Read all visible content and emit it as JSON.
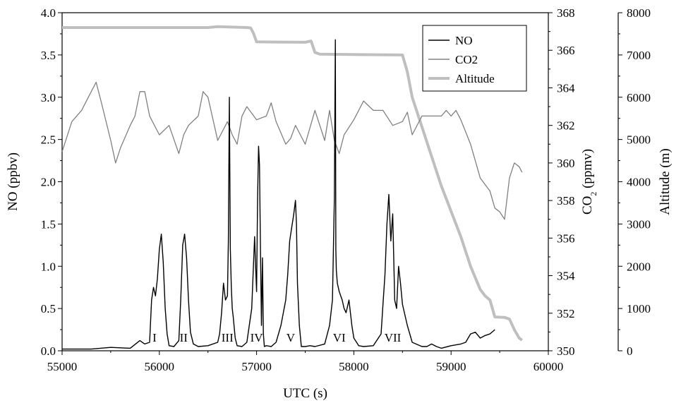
{
  "chart_data": {
    "type": "line",
    "xlabel": "UTC (s)",
    "x_axis": {
      "range": [
        55000,
        60000
      ],
      "ticks": [
        "55000",
        "56000",
        "57000",
        "58000",
        "59000",
        "60000"
      ]
    },
    "y_axes": [
      {
        "key": "no",
        "label_parts": [
          "NO (ppbv)"
        ],
        "range": [
          0,
          4
        ],
        "ticks": [
          "0.0",
          "0.5",
          "1.0",
          "1.5",
          "2.0",
          "2.5",
          "3.0",
          "3.5",
          "4.0"
        ]
      },
      {
        "key": "co2",
        "label_parts": [
          "CO",
          "2",
          " (ppmv)"
        ],
        "range": [
          350,
          368
        ],
        "ticks": [
          "350",
          "352",
          "354",
          "356",
          "358",
          "360",
          "362",
          "364",
          "366",
          "368"
        ]
      },
      {
        "key": "alt",
        "label_parts": [
          "Altitude (m)"
        ],
        "range": [
          0,
          8000
        ],
        "ticks": [
          "0",
          "1000",
          "2000",
          "3000",
          "4000",
          "5000",
          "6000",
          "7000",
          "8000"
        ]
      }
    ],
    "legend": {
      "position": "top-right",
      "entries": [
        {
          "key": "no",
          "label_parts": [
            "NO"
          ]
        },
        {
          "key": "co2",
          "label_parts": [
            "CO",
            "2"
          ]
        },
        {
          "key": "alt",
          "label_parts": [
            "Altitude"
          ]
        }
      ]
    },
    "series": [
      {
        "key": "no",
        "name": "NO",
        "axis": "no",
        "color": "#000000",
        "x": [
          55000,
          55300,
          55500,
          55700,
          55800,
          55850,
          55900,
          55920,
          55940,
          55960,
          55980,
          56000,
          56020,
          56040,
          56060,
          56080,
          56100,
          56150,
          56200,
          56220,
          56240,
          56260,
          56280,
          56300,
          56320,
          56350,
          56400,
          56500,
          56600,
          56620,
          56640,
          56660,
          56680,
          56700,
          56710,
          56720,
          56730,
          56740,
          56750,
          56760,
          56780,
          56800,
          56850,
          56900,
          56950,
          56980,
          56990,
          57000,
          57010,
          57020,
          57030,
          57040,
          57050,
          57060,
          57070,
          57080,
          57100,
          57150,
          57200,
          57250,
          57300,
          57320,
          57340,
          57360,
          57380,
          57400,
          57410,
          57420,
          57440,
          57460,
          57500,
          57550,
          57600,
          57700,
          57750,
          57780,
          57800,
          57810,
          57815,
          57820,
          57830,
          57850,
          57880,
          57900,
          57920,
          57950,
          57980,
          58000,
          58050,
          58100,
          58200,
          58280,
          58300,
          58320,
          58340,
          58360,
          58380,
          58400,
          58420,
          58440,
          58460,
          58480,
          58500,
          58550,
          58600,
          58700,
          58750,
          58800,
          58850,
          58900,
          59000,
          59100,
          59150,
          59200,
          59250,
          59300,
          59350,
          59400,
          59450
        ],
        "y": [
          0.02,
          0.02,
          0.04,
          0.03,
          0.12,
          0.08,
          0.1,
          0.6,
          0.75,
          0.65,
          0.85,
          1.2,
          1.38,
          1.05,
          0.5,
          0.2,
          0.06,
          0.05,
          0.12,
          0.6,
          1.25,
          1.38,
          1.1,
          0.6,
          0.22,
          0.08,
          0.05,
          0.06,
          0.1,
          0.2,
          0.45,
          0.8,
          0.6,
          0.65,
          1.3,
          3.0,
          1.2,
          0.75,
          0.5,
          0.4,
          0.15,
          0.06,
          0.05,
          0.1,
          0.5,
          1.35,
          1.0,
          0.7,
          1.8,
          2.42,
          2.2,
          1.2,
          0.3,
          1.1,
          0.2,
          0.05,
          0.06,
          0.05,
          0.1,
          0.3,
          0.6,
          0.9,
          1.3,
          1.45,
          1.6,
          1.78,
          1.5,
          0.8,
          0.3,
          0.05,
          0.05,
          0.06,
          0.05,
          0.08,
          0.3,
          0.6,
          1.8,
          3.68,
          1.2,
          0.95,
          0.8,
          0.7,
          0.6,
          0.5,
          0.45,
          0.6,
          0.3,
          0.15,
          0.06,
          0.05,
          0.06,
          0.2,
          0.55,
          0.9,
          1.5,
          1.85,
          1.3,
          1.62,
          0.6,
          0.5,
          1.0,
          0.8,
          0.55,
          0.3,
          0.1,
          0.05,
          0.05,
          0.08,
          0.05,
          0.03,
          0.06,
          0.08,
          0.1,
          0.2,
          0.22,
          0.15,
          0.18,
          0.2,
          0.25
        ]
      },
      {
        "key": "co2",
        "name": "CO2",
        "axis": "co2",
        "color": "#808080",
        "x": [
          55000,
          55100,
          55200,
          55300,
          55350,
          55400,
          55500,
          55550,
          55600,
          55700,
          55750,
          55800,
          55850,
          55900,
          56000,
          56100,
          56200,
          56250,
          56300,
          56400,
          56450,
          56500,
          56600,
          56700,
          56750,
          56800,
          56850,
          56900,
          57000,
          57100,
          57150,
          57200,
          57300,
          57350,
          57400,
          57450,
          57500,
          57600,
          57650,
          57700,
          57750,
          57800,
          57850,
          57900,
          58000,
          58100,
          58200,
          58300,
          58400,
          58500,
          58550,
          58600,
          58700,
          58800,
          58900,
          58950,
          59000,
          59050,
          59100,
          59200,
          59300,
          59400,
          59450,
          59500,
          59550,
          59600,
          59650,
          59700,
          59730
        ],
        "y": [
          360.6,
          362.2,
          362.8,
          363.8,
          364.3,
          363.3,
          361.2,
          360.0,
          360.8,
          362.0,
          362.5,
          363.8,
          363.8,
          362.5,
          361.5,
          362.0,
          360.5,
          361.5,
          362.0,
          362.5,
          363.8,
          363.5,
          361.2,
          362.2,
          361.5,
          361.0,
          362.5,
          363.0,
          362.3,
          362.5,
          363.2,
          362.2,
          361.0,
          361.3,
          362.0,
          361.5,
          361.0,
          362.8,
          362.0,
          361.2,
          362.8,
          361.2,
          360.5,
          361.5,
          362.3,
          363.3,
          362.8,
          362.8,
          362.0,
          362.2,
          362.7,
          361.5,
          362.5,
          362.5,
          362.5,
          362.8,
          362.5,
          362.8,
          362.3,
          361.0,
          359.2,
          358.5,
          357.6,
          357.4,
          357.0,
          359.2,
          360.0,
          359.8,
          359.5
        ]
      },
      {
        "key": "alt",
        "name": "Altitude",
        "axis": "alt",
        "color": "#bfbfbf",
        "x": [
          55000,
          56500,
          56600,
          56900,
          56940,
          56970,
          57000,
          57500,
          57560,
          57600,
          57650,
          58000,
          58500,
          58550,
          58600,
          58700,
          58800,
          58900,
          59000,
          59100,
          59200,
          59300,
          59350,
          59400,
          59450,
          59550,
          59600,
          59650,
          59700,
          59730
        ],
        "y": [
          7650,
          7650,
          7670,
          7650,
          7640,
          7500,
          7310,
          7300,
          7330,
          7060,
          7020,
          7010,
          7000,
          6600,
          6000,
          5300,
          4600,
          3900,
          3300,
          2700,
          2000,
          1450,
          1300,
          1200,
          800,
          790,
          750,
          500,
          300,
          250
        ]
      }
    ],
    "annotations": [
      {
        "label": "I",
        "x": 55950
      },
      {
        "label": "II",
        "x": 56250
      },
      {
        "label": "III",
        "x": 56700
      },
      {
        "label": "IV",
        "x": 57000
      },
      {
        "label": "V",
        "x": 57350
      },
      {
        "label": "VI",
        "x": 57850
      },
      {
        "label": "VII",
        "x": 58400
      }
    ]
  }
}
